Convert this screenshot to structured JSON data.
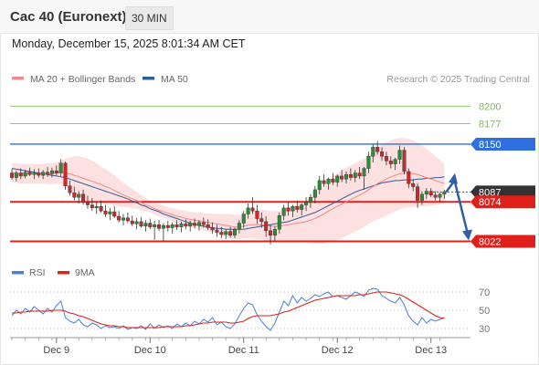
{
  "header": {
    "instrument": "Cac 40 (Euronext)",
    "timeframe": "30 MIN"
  },
  "datetime": "Monday, December 15, 2025 8:01:34 AM CET",
  "chart_data": [
    {
      "type": "candlestick",
      "legend": [
        {
          "label": "MA 20 + Bollinger Bands",
          "color": "#f08b8b"
        },
        {
          "label": "MA 50",
          "color": "#2e5b9a"
        }
      ],
      "watermark": "Research © 2025 Trading Central",
      "ylim": [
        8001,
        8222
      ],
      "levels": [
        {
          "value": 8200,
          "label": "8200",
          "role": "resistance",
          "color": "#8cc97a"
        },
        {
          "value": 8177,
          "label": "8177",
          "role": "resistance",
          "color": "#8cc97a"
        },
        {
          "value": 8150,
          "label": "8150",
          "role": "pivot",
          "color": "#2f6fe0"
        },
        {
          "value": 8087,
          "label": "8087",
          "role": "last-price",
          "color": "#333333"
        },
        {
          "value": 8074,
          "label": "8074",
          "role": "support",
          "color": "#e0201b"
        },
        {
          "value": 8022,
          "label": "8022",
          "role": "support",
          "color": "#e0201b"
        }
      ],
      "scenario": {
        "from": 8087,
        "up": 8107,
        "target": 8022
      },
      "candles": [
        [
          8112,
          8117,
          8103,
          8106
        ],
        [
          8106,
          8115,
          8101,
          8112
        ],
        [
          8112,
          8118,
          8104,
          8108
        ],
        [
          8108,
          8116,
          8105,
          8113
        ],
        [
          8113,
          8119,
          8108,
          8110
        ],
        [
          8110,
          8117,
          8104,
          8112
        ],
        [
          8112,
          8118,
          8106,
          8109
        ],
        [
          8109,
          8116,
          8104,
          8113
        ],
        [
          8113,
          8120,
          8107,
          8111
        ],
        [
          8111,
          8119,
          8106,
          8115
        ],
        [
          8115,
          8122,
          8109,
          8112
        ],
        [
          8112,
          8130,
          8108,
          8125
        ],
        [
          8125,
          8127,
          8090,
          8095
        ],
        [
          8095,
          8102,
          8082,
          8086
        ],
        [
          8086,
          8094,
          8076,
          8080
        ],
        [
          8080,
          8088,
          8072,
          8084
        ],
        [
          8084,
          8090,
          8070,
          8074
        ],
        [
          8074,
          8082,
          8065,
          8070
        ],
        [
          8070,
          8079,
          8062,
          8066
        ],
        [
          8066,
          8074,
          8058,
          8068
        ],
        [
          8068,
          8076,
          8060,
          8062
        ],
        [
          8062,
          8070,
          8054,
          8058
        ],
        [
          8058,
          8066,
          8050,
          8061
        ],
        [
          8061,
          8068,
          8053,
          8055
        ],
        [
          8055,
          8062,
          8047,
          8050
        ],
        [
          8050,
          8058,
          8043,
          8053
        ],
        [
          8053,
          8060,
          8046,
          8049
        ],
        [
          8049,
          8056,
          8042,
          8045
        ],
        [
          8045,
          8053,
          8038,
          8048
        ],
        [
          8048,
          8054,
          8040,
          8042
        ],
        [
          8042,
          8050,
          8035,
          8046
        ],
        [
          8046,
          8052,
          8038,
          8041
        ],
        [
          8041,
          8049,
          8024,
          8044
        ],
        [
          8044,
          8050,
          8036,
          8039
        ],
        [
          8039,
          8046,
          8022,
          8043
        ],
        [
          8043,
          8049,
          8035,
          8040
        ],
        [
          8040,
          8047,
          8032,
          8044
        ],
        [
          8044,
          8050,
          8037,
          8041
        ],
        [
          8041,
          8048,
          8034,
          8045
        ],
        [
          8045,
          8051,
          8038,
          8042
        ],
        [
          8042,
          8049,
          8035,
          8046
        ],
        [
          8046,
          8052,
          8039,
          8043
        ],
        [
          8043,
          8050,
          8036,
          8047
        ],
        [
          8047,
          8053,
          8040,
          8044
        ],
        [
          8044,
          8051,
          8037,
          8040
        ],
        [
          8040,
          8047,
          8032,
          8037
        ],
        [
          8037,
          8044,
          8028,
          8034
        ],
        [
          8034,
          8041,
          8026,
          8031
        ],
        [
          8031,
          8038,
          8025,
          8035
        ],
        [
          8035,
          8041,
          8027,
          8030
        ],
        [
          8030,
          8040,
          8026,
          8038
        ],
        [
          8038,
          8050,
          8032,
          8046
        ],
        [
          8046,
          8062,
          8040,
          8058
        ],
        [
          8058,
          8072,
          8052,
          8066
        ],
        [
          8066,
          8080,
          8058,
          8062
        ],
        [
          8062,
          8070,
          8045,
          8052
        ],
        [
          8052,
          8060,
          8040,
          8048
        ],
        [
          8048,
          8055,
          8028,
          8036
        ],
        [
          8036,
          8044,
          8018,
          8030
        ],
        [
          8030,
          8042,
          8022,
          8038
        ],
        [
          8038,
          8060,
          8032,
          8056
        ],
        [
          8056,
          8070,
          8050,
          8066
        ],
        [
          8066,
          8074,
          8056,
          8062
        ],
        [
          8062,
          8070,
          8054,
          8068
        ],
        [
          8068,
          8076,
          8060,
          8064
        ],
        [
          8064,
          8072,
          8056,
          8070
        ],
        [
          8070,
          8080,
          8062,
          8074
        ],
        [
          8074,
          8084,
          8066,
          8080
        ],
        [
          8080,
          8095,
          8072,
          8090
        ],
        [
          8090,
          8108,
          8084,
          8102
        ],
        [
          8102,
          8110,
          8094,
          8098
        ],
        [
          8098,
          8106,
          8090,
          8104
        ],
        [
          8104,
          8112,
          8096,
          8100
        ],
        [
          8100,
          8110,
          8094,
          8108
        ],
        [
          8108,
          8116,
          8100,
          8104
        ],
        [
          8104,
          8114,
          8098,
          8110
        ],
        [
          8110,
          8118,
          8102,
          8106
        ],
        [
          8106,
          8116,
          8100,
          8112
        ],
        [
          8112,
          8120,
          8104,
          8108
        ],
        [
          8108,
          8120,
          8090,
          8118
        ],
        [
          8118,
          8140,
          8112,
          8134
        ],
        [
          8134,
          8150,
          8126,
          8146
        ],
        [
          8146,
          8154,
          8136,
          8140
        ],
        [
          8140,
          8146,
          8128,
          8134
        ],
        [
          8134,
          8140,
          8122,
          8128
        ],
        [
          8128,
          8134,
          8118,
          8124
        ],
        [
          8124,
          8132,
          8116,
          8130
        ],
        [
          8130,
          8148,
          8124,
          8142
        ],
        [
          8142,
          8146,
          8110,
          8114
        ],
        [
          8114,
          8118,
          8092,
          8098
        ],
        [
          8098,
          8104,
          8088,
          8094
        ],
        [
          8094,
          8098,
          8066,
          8076
        ],
        [
          8076,
          8088,
          8070,
          8084
        ],
        [
          8084,
          8092,
          8078,
          8088
        ],
        [
          8088,
          8092,
          8080,
          8083
        ],
        [
          8083,
          8088,
          8076,
          8080
        ],
        [
          8080,
          8086,
          8074,
          8084
        ],
        [
          8084,
          8090,
          8078,
          8087
        ]
      ],
      "sma20": [
        8112,
        8112,
        8111,
        8111,
        8111,
        8111,
        8111,
        8111,
        8111,
        8111,
        8112,
        8113,
        8112,
        8111,
        8109,
        8107,
        8105,
        8103,
        8101,
        8099,
        8097,
        8094,
        8092,
        8089,
        8086,
        8083,
        8081,
        8078,
        8076,
        8073,
        8070,
        8068,
        8065,
        8063,
        8061,
        8059,
        8057,
        8055,
        8054,
        8052,
        8051,
        8050,
        8049,
        8048,
        8047,
        8046,
        8045,
        8044,
        8043,
        8042,
        8041,
        8041,
        8042,
        8043,
        8044,
        8044,
        8044,
        8043,
        8042,
        8042,
        8042,
        8043,
        8044,
        8045,
        8046,
        8047,
        8048,
        8050,
        8052,
        8055,
        8058,
        8062,
        8065,
        8068,
        8071,
        8074,
        8077,
        8080,
        8083,
        8086,
        8090,
        8094,
        8098,
        8101,
        8104,
        8107,
        8109,
        8111,
        8112,
        8112,
        8111,
        8110,
        8108,
        8106,
        8104,
        8102,
        8100,
        8098
      ],
      "bb_upper": [
        8125,
        8125,
        8124,
        8124,
        8124,
        8124,
        8124,
        8124,
        8125,
        8125,
        8126,
        8128,
        8131,
        8133,
        8134,
        8134,
        8133,
        8131,
        8128,
        8125,
        8121,
        8117,
        8113,
        8109,
        8104,
        8099,
        8095,
        8091,
        8087,
        8083,
        8079,
        8076,
        8073,
        8071,
        8069,
        8067,
        8066,
        8064,
        8063,
        8062,
        8061,
        8060,
        8060,
        8059,
        8059,
        8058,
        8058,
        8058,
        8058,
        8058,
        8057,
        8057,
        8058,
        8060,
        8062,
        8063,
        8063,
        8063,
        8062,
        8062,
        8062,
        8064,
        8066,
        8068,
        8070,
        8073,
        8076,
        8080,
        8085,
        8091,
        8097,
        8103,
        8108,
        8112,
        8116,
        8119,
        8122,
        8125,
        8128,
        8131,
        8135,
        8140,
        8145,
        8149,
        8152,
        8155,
        8157,
        8158,
        8158,
        8157,
        8155,
        8152,
        8148,
        8144,
        8139,
        8134,
        8129,
        8124
      ],
      "bb_lower": [
        8099,
        8099,
        8098,
        8098,
        8098,
        8098,
        8098,
        8098,
        8097,
        8097,
        8098,
        8098,
        8093,
        8089,
        8084,
        8080,
        8077,
        8075,
        8074,
        8073,
        8073,
        8071,
        8071,
        8069,
        8068,
        8067,
        8067,
        8065,
        8065,
        8063,
        8061,
        8060,
        8057,
        8055,
        8053,
        8051,
        8048,
        8046,
        8045,
        8042,
        8041,
        8040,
        8038,
        8037,
        8035,
        8034,
        8032,
        8030,
        8028,
        8026,
        8025,
        8025,
        8026,
        8026,
        8026,
        8025,
        8025,
        8023,
        8022,
        8022,
        8022,
        8022,
        8022,
        8022,
        8022,
        8021,
        8020,
        8020,
        8019,
        8019,
        8019,
        8021,
        8022,
        8024,
        8026,
        8029,
        8032,
        8035,
        8038,
        8041,
        8045,
        8048,
        8051,
        8053,
        8056,
        8059,
        8061,
        8064,
        8066,
        8067,
        8067,
        8068,
        8068,
        8068,
        8069,
        8070,
        8071,
        8072
      ],
      "ma50": [
        8118,
        8117,
        8116,
        8115,
        8114,
        8113,
        8112,
        8111,
        8110,
        8109,
        8108,
        8107,
        8106,
        8104,
        8102,
        8100,
        8098,
        8096,
        8094,
        8092,
        8090,
        8088,
        8086,
        8084,
        8082,
        8080,
        8078,
        8075,
        8073,
        8070,
        8068,
        8065,
        8063,
        8061,
        8058,
        8056,
        8054,
        8052,
        8050,
        8048,
        8046,
        8044,
        8043,
        8042,
        8041,
        8040,
        8039,
        8039,
        8038,
        8038,
        8038,
        8038,
        8038,
        8039,
        8040,
        8041,
        8042,
        8043,
        8044,
        8045,
        8046,
        8047,
        8048,
        8050,
        8052,
        8054,
        8056,
        8058,
        8060,
        8063,
        8066,
        8069,
        8072,
        8075,
        8078,
        8081,
        8084,
        8087,
        8089,
        8091,
        8093,
        8095,
        8097,
        8099,
        8100,
        8101,
        8102,
        8102,
        8103,
        8103,
        8103,
        8104,
        8104,
        8105,
        8105,
        8106,
        8106,
        8107
      ],
      "x_ticks": [
        {
          "index": 10,
          "label": "Dec 9"
        },
        {
          "index": 31,
          "label": "Dec 10"
        },
        {
          "index": 52,
          "label": "Dec 11"
        },
        {
          "index": 73,
          "label": "Dec 12"
        },
        {
          "index": 94,
          "label": "Dec 13"
        }
      ]
    },
    {
      "type": "line",
      "legend": [
        {
          "label": "RSI",
          "color": "#4a7fd6"
        },
        {
          "label": "9MA",
          "color": "#e0201b"
        }
      ],
      "ylim": [
        22,
        78
      ],
      "y_ticks": [
        70,
        50,
        30
      ],
      "rsi": [
        44,
        50,
        46,
        52,
        48,
        54,
        50,
        46,
        52,
        48,
        55,
        60,
        42,
        38,
        36,
        40,
        34,
        32,
        36,
        34,
        30,
        33,
        31,
        32,
        30,
        33,
        29,
        31,
        30,
        33,
        29,
        35,
        30,
        34,
        31,
        33,
        30,
        35,
        32,
        36,
        33,
        38,
        35,
        40,
        37,
        42,
        34,
        37,
        32,
        30,
        35,
        44,
        52,
        58,
        56,
        45,
        38,
        32,
        28,
        36,
        48,
        60,
        55,
        66,
        58,
        64,
        60,
        63,
        67,
        65,
        68,
        70,
        65,
        66,
        64,
        62,
        66,
        70,
        68,
        65,
        72,
        74,
        73,
        66,
        63,
        60,
        58,
        64,
        56,
        44,
        38,
        34,
        42,
        36,
        40,
        38,
        40,
        42
      ],
      "ma9": [
        47,
        47,
        48,
        48,
        49,
        49,
        49,
        49,
        49,
        50,
        50,
        50,
        49,
        47,
        46,
        44,
        43,
        41,
        39,
        37,
        35,
        34,
        33,
        33,
        32,
        32,
        31,
        31,
        31,
        31,
        31,
        31,
        31,
        31,
        32,
        32,
        32,
        32,
        32,
        33,
        33,
        34,
        35,
        36,
        36,
        37,
        37,
        37,
        37,
        36,
        36,
        37,
        38,
        41,
        43,
        44,
        44,
        44,
        44,
        45,
        46,
        48,
        49,
        51,
        53,
        55,
        57,
        59,
        61,
        62,
        63,
        64,
        65,
        66,
        66,
        66,
        66,
        66,
        67,
        67,
        68,
        69,
        70,
        70,
        70,
        69,
        68,
        67,
        65,
        62,
        59,
        56,
        53,
        50,
        47,
        44,
        42,
        41
      ]
    }
  ]
}
